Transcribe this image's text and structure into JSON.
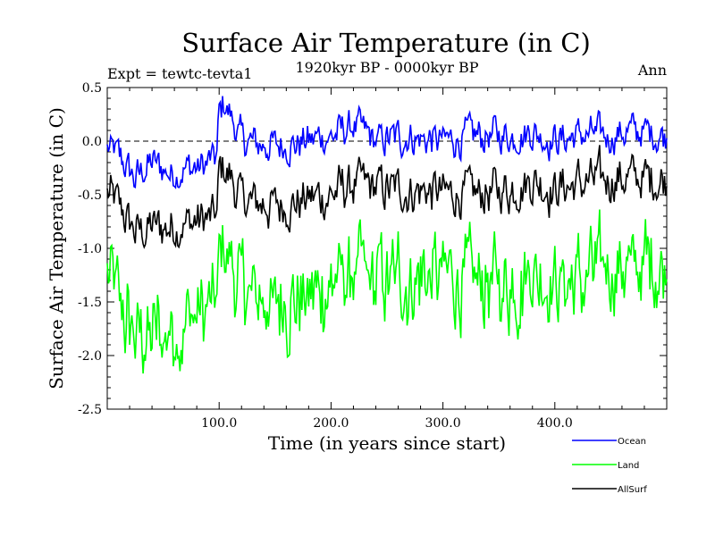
{
  "chart_data": {
    "type": "line",
    "title": "Surface Air Temperature (in C)",
    "subtitle": "1920kyr BP - 0000kyr BP",
    "left_label": "Expt = tewtc-tevta1",
    "right_label": "Ann",
    "xlabel": "Time (in years since start)",
    "ylabel": "Surface Air Temperature (in C)",
    "xlim": [
      0,
      500
    ],
    "ylim": [
      -2.5,
      0.5
    ],
    "x_ticks": [
      100,
      200,
      300,
      400
    ],
    "x_tick_labels": [
      "100.0",
      "200.0",
      "300.0",
      "400.0"
    ],
    "y_ticks": [
      -2.5,
      -2.0,
      -1.5,
      -1.0,
      -0.5,
      0.0,
      0.5
    ],
    "y_tick_labels": [
      "-2.5",
      "-2.0",
      "-1.5",
      "-1.0",
      "-0.5",
      "0.0",
      "0.5"
    ],
    "reference_line": 0.0,
    "legend_position": "bottom-right",
    "series": [
      {
        "name": "Ocean",
        "color": "#0000ff",
        "anchors": [
          [
            0,
            -0.05
          ],
          [
            10,
            -0.15
          ],
          [
            25,
            -0.35
          ],
          [
            40,
            -0.2
          ],
          [
            55,
            -0.3
          ],
          [
            70,
            -0.25
          ],
          [
            85,
            -0.25
          ],
          [
            98,
            -0.15
          ],
          [
            100,
            0.25
          ],
          [
            105,
            0.35
          ],
          [
            120,
            0.0
          ],
          [
            150,
            -0.05
          ],
          [
            180,
            0.0
          ],
          [
            200,
            0.05
          ],
          [
            220,
            0.15
          ],
          [
            240,
            0.0
          ],
          [
            270,
            0.05
          ],
          [
            300,
            0.0
          ],
          [
            330,
            0.05
          ],
          [
            360,
            0.05
          ],
          [
            380,
            0.1
          ],
          [
            400,
            0.0
          ],
          [
            420,
            0.05
          ],
          [
            450,
            0.05
          ],
          [
            470,
            0.1
          ],
          [
            500,
            0.05
          ]
        ]
      },
      {
        "name": "Land",
        "color": "#00ff00",
        "anchors": [
          [
            0,
            -1.25
          ],
          [
            10,
            -1.5
          ],
          [
            25,
            -1.85
          ],
          [
            40,
            -1.8
          ],
          [
            55,
            -1.75
          ],
          [
            70,
            -1.7
          ],
          [
            85,
            -1.6
          ],
          [
            98,
            -1.55
          ],
          [
            100,
            -1.05
          ],
          [
            105,
            -1.0
          ],
          [
            120,
            -1.4
          ],
          [
            150,
            -1.5
          ],
          [
            180,
            -1.45
          ],
          [
            200,
            -1.35
          ],
          [
            220,
            -1.25
          ],
          [
            250,
            -1.3
          ],
          [
            280,
            -1.25
          ],
          [
            300,
            -1.3
          ],
          [
            330,
            -1.3
          ],
          [
            360,
            -1.35
          ],
          [
            380,
            -1.2
          ],
          [
            400,
            -1.35
          ],
          [
            420,
            -1.3
          ],
          [
            450,
            -1.2
          ],
          [
            480,
            -1.15
          ],
          [
            500,
            -1.15
          ]
        ]
      },
      {
        "name": "AllSurf",
        "color": "#000000",
        "anchors": [
          [
            0,
            -0.5
          ],
          [
            10,
            -0.6
          ],
          [
            25,
            -0.85
          ],
          [
            40,
            -0.8
          ],
          [
            55,
            -0.8
          ],
          [
            70,
            -0.75
          ],
          [
            85,
            -0.75
          ],
          [
            98,
            -0.7
          ],
          [
            100,
            -0.3
          ],
          [
            105,
            -0.25
          ],
          [
            120,
            -0.55
          ],
          [
            150,
            -0.6
          ],
          [
            180,
            -0.55
          ],
          [
            200,
            -0.5
          ],
          [
            220,
            -0.4
          ],
          [
            250,
            -0.45
          ],
          [
            280,
            -0.45
          ],
          [
            300,
            -0.5
          ],
          [
            330,
            -0.5
          ],
          [
            360,
            -0.45
          ],
          [
            380,
            -0.35
          ],
          [
            400,
            -0.45
          ],
          [
            420,
            -0.4
          ],
          [
            450,
            -0.35
          ],
          [
            480,
            -0.35
          ],
          [
            500,
            -0.35
          ]
        ]
      }
    ]
  }
}
